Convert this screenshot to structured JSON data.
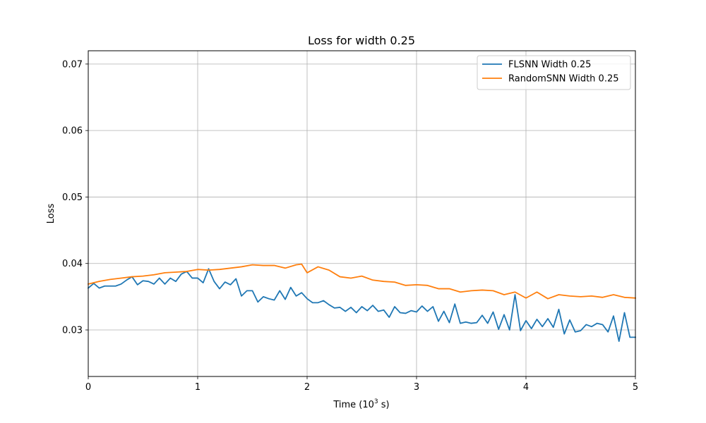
{
  "chart_data": {
    "type": "line",
    "title": "Loss for width 0.25",
    "xlabel": "Time (10",
    "xlabel_sup": "3",
    "xlabel_suffix": " s)",
    "ylabel": "Loss",
    "xlim": [
      0,
      5
    ],
    "ylim": [
      0.023,
      0.072
    ],
    "xticks": [
      0,
      1,
      2,
      3,
      4,
      5
    ],
    "xtick_labels": [
      "0",
      "1",
      "2",
      "3",
      "4",
      "5"
    ],
    "yticks": [
      0.03,
      0.04,
      0.05,
      0.06,
      0.07
    ],
    "ytick_labels": [
      "0.03",
      "0.04",
      "0.05",
      "0.06",
      "0.07"
    ],
    "grid": true,
    "legend_position": "top-right",
    "series": [
      {
        "name": "FLSNN Width 0.25",
        "color": "#1f77b4",
        "x": [
          0,
          0.05,
          0.1,
          0.15,
          0.2,
          0.25,
          0.3,
          0.35,
          0.4,
          0.45,
          0.5,
          0.55,
          0.6,
          0.65,
          0.7,
          0.75,
          0.8,
          0.85,
          0.9,
          0.95,
          1.0,
          1.05,
          1.1,
          1.15,
          1.2,
          1.25,
          1.3,
          1.35,
          1.4,
          1.45,
          1.5,
          1.55,
          1.6,
          1.65,
          1.7,
          1.75,
          1.8,
          1.85,
          1.9,
          1.95,
          2.0,
          2.05,
          2.1,
          2.15,
          2.2,
          2.25,
          2.3,
          2.35,
          2.4,
          2.45,
          2.5,
          2.55,
          2.6,
          2.65,
          2.7,
          2.75,
          2.8,
          2.85,
          2.9,
          2.95,
          3.0,
          3.05,
          3.1,
          3.15,
          3.2,
          3.25,
          3.3,
          3.35,
          3.4,
          3.45,
          3.5,
          3.55,
          3.6,
          3.65,
          3.7,
          3.75,
          3.8,
          3.85,
          3.9,
          3.95,
          4.0,
          4.05,
          4.1,
          4.15,
          4.2,
          4.25,
          4.3,
          4.35,
          4.4,
          4.45,
          4.5,
          4.55,
          4.6,
          4.65,
          4.7,
          4.75,
          4.8,
          4.85,
          4.9,
          4.95,
          5.0
        ],
        "values": [
          0.0363,
          0.037,
          0.0363,
          0.0366,
          0.0366,
          0.0366,
          0.0369,
          0.0375,
          0.038,
          0.0368,
          0.0374,
          0.0373,
          0.0369,
          0.0378,
          0.0369,
          0.0378,
          0.0373,
          0.0384,
          0.0388,
          0.0378,
          0.0378,
          0.0371,
          0.0392,
          0.0373,
          0.0362,
          0.0372,
          0.0368,
          0.0377,
          0.0351,
          0.0359,
          0.0359,
          0.0342,
          0.035,
          0.0347,
          0.0345,
          0.0359,
          0.0346,
          0.0364,
          0.0351,
          0.0356,
          0.0347,
          0.0341,
          0.0341,
          0.0344,
          0.0338,
          0.0333,
          0.0334,
          0.0328,
          0.0334,
          0.0326,
          0.0335,
          0.0329,
          0.0337,
          0.0328,
          0.033,
          0.0319,
          0.0335,
          0.0326,
          0.0325,
          0.0329,
          0.0327,
          0.0336,
          0.0328,
          0.0335,
          0.0313,
          0.0328,
          0.0311,
          0.0339,
          0.031,
          0.0312,
          0.031,
          0.0311,
          0.0322,
          0.031,
          0.0327,
          0.0301,
          0.0323,
          0.03,
          0.0353,
          0.0299,
          0.0314,
          0.0302,
          0.0316,
          0.0305,
          0.0317,
          0.0304,
          0.0331,
          0.0294,
          0.0315,
          0.0297,
          0.0299,
          0.0308,
          0.0305,
          0.031,
          0.0308,
          0.0297,
          0.0321,
          0.0283,
          0.0326,
          0.0289,
          0.0289
        ]
      },
      {
        "name": "RandomSNN Width 0.25",
        "color": "#ff7f0e",
        "x": [
          0,
          0.1,
          0.2,
          0.3,
          0.4,
          0.5,
          0.6,
          0.7,
          0.8,
          0.9,
          1.0,
          1.1,
          1.2,
          1.3,
          1.4,
          1.5,
          1.6,
          1.7,
          1.8,
          1.9,
          1.95,
          2.0,
          2.1,
          2.2,
          2.3,
          2.4,
          2.5,
          2.6,
          2.7,
          2.8,
          2.9,
          3.0,
          3.1,
          3.2,
          3.3,
          3.4,
          3.5,
          3.6,
          3.7,
          3.8,
          3.9,
          4.0,
          4.1,
          4.2,
          4.3,
          4.4,
          4.5,
          4.6,
          4.7,
          4.8,
          4.9,
          5.0
        ],
        "values": [
          0.0369,
          0.0373,
          0.0376,
          0.0378,
          0.038,
          0.0381,
          0.0383,
          0.0386,
          0.0387,
          0.0388,
          0.0391,
          0.039,
          0.0391,
          0.0393,
          0.0395,
          0.0398,
          0.0397,
          0.0397,
          0.0393,
          0.0398,
          0.0399,
          0.0386,
          0.0395,
          0.039,
          0.038,
          0.0378,
          0.0381,
          0.0375,
          0.0373,
          0.0372,
          0.0367,
          0.0368,
          0.0367,
          0.0362,
          0.0362,
          0.0357,
          0.0359,
          0.036,
          0.0359,
          0.0353,
          0.0357,
          0.0348,
          0.0357,
          0.0347,
          0.0353,
          0.0351,
          0.035,
          0.0351,
          0.0349,
          0.0353,
          0.0349,
          0.0348
        ]
      }
    ]
  }
}
